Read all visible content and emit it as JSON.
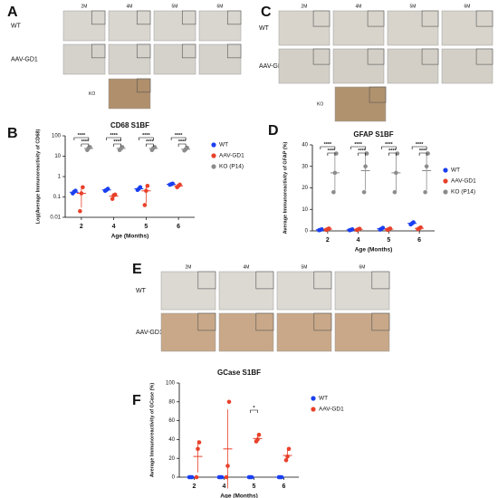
{
  "figure_panels": [
    {
      "panel": "A",
      "columns": [
        "2M",
        "4M",
        "5M",
        "6M"
      ],
      "rows": [
        "WT",
        "AAV-GD1"
      ],
      "extra": "KO"
    },
    {
      "panel": "C",
      "columns": [
        "2M",
        "4M",
        "5M",
        "6M"
      ],
      "rows": [
        "WT",
        "AAV-GD1."
      ],
      "extra": "KO"
    },
    {
      "panel": "E",
      "columns": [
        "2M",
        "4M",
        "5M",
        "6M"
      ],
      "rows": [
        "WT",
        "AAV-GD1"
      ]
    }
  ],
  "chart_data": [
    {
      "type": "dot",
      "panel": "B",
      "title": "CD68 S1BF",
      "x_label": "Age (Months)",
      "y_label": "Log(Average Immunoreactivity of CD68)",
      "log_scale": true,
      "ylim": [
        0.01,
        100
      ],
      "yticks": [
        0.01,
        0.1,
        1,
        10,
        100
      ],
      "categories": [
        "2",
        "4",
        "5",
        "6"
      ],
      "series": [
        {
          "name": "WT",
          "color": "#1a3ff0",
          "values": [
            0.17,
            0.22,
            0.25,
            0.42
          ],
          "errors": [
            0.03,
            0.03,
            0.04,
            0.03
          ],
          "points": [
            [
              0.15,
              0.18,
              0.2
            ],
            [
              0.2,
              0.22,
              0.25
            ],
            [
              0.22,
              0.25,
              0.3
            ],
            [
              0.4,
              0.42,
              0.45
            ]
          ]
        },
        {
          "name": "AAV-GD1",
          "color": "#e8412a",
          "values": [
            0.15,
            0.11,
            0.2,
            0.35
          ],
          "errors": [
            0.12,
            0.03,
            0.15,
            0.05
          ],
          "points": [
            [
              0.02,
              0.15,
              0.3
            ],
            [
              0.08,
              0.12,
              0.13
            ],
            [
              0.04,
              0.2,
              0.35
            ],
            [
              0.3,
              0.35,
              0.4
            ]
          ]
        },
        {
          "name": "KO (P14)",
          "color": "#8c8c8c",
          "values": [
            24,
            24,
            24,
            22
          ],
          "errors": [
            5,
            5,
            5,
            5
          ],
          "points": [
            [
              20,
              25,
              28
            ],
            [
              20,
              24,
              28
            ],
            [
              20,
              25,
              28
            ],
            [
              19,
              22,
              26
            ]
          ]
        }
      ],
      "annotations": [
        {
          "text": "****",
          "category": "2"
        },
        {
          "text": "****",
          "category": "2"
        },
        {
          "text": "****",
          "category": "4"
        },
        {
          "text": "****",
          "category": "4"
        },
        {
          "text": "****",
          "category": "5"
        },
        {
          "text": "****",
          "category": "5"
        },
        {
          "text": "****",
          "category": "6"
        },
        {
          "text": "****",
          "category": "6"
        }
      ]
    },
    {
      "type": "dot",
      "panel": "D",
      "title": "GFAP S1BF",
      "x_label": "Age (Months)",
      "y_label": "Average Immunoreactivity of GFAP (%)",
      "log_scale": false,
      "ylim": [
        0,
        40
      ],
      "yticks": [
        0,
        10,
        20,
        30,
        40
      ],
      "categories": [
        "2",
        "4",
        "5",
        "6"
      ],
      "series": [
        {
          "name": "WT",
          "color": "#1a3ff0",
          "values": [
            0.5,
            0.5,
            1,
            3.5
          ],
          "errors": [
            0.3,
            0.3,
            0.5,
            1
          ],
          "points": [
            [
              0.3,
              0.5,
              0.7
            ],
            [
              0.3,
              0.5,
              0.7
            ],
            [
              0.6,
              1,
              1.4
            ],
            [
              3,
              3.5,
              4
            ]
          ]
        },
        {
          "name": "AAV-GD1",
          "color": "#e8412a",
          "values": [
            0.8,
            0.7,
            0.8,
            1.2
          ],
          "errors": [
            0.4,
            0.4,
            0.4,
            0.4
          ],
          "points": [
            [
              0.5,
              0.8,
              1.1
            ],
            [
              0.4,
              0.7,
              1
            ],
            [
              0.5,
              0.8,
              1.1
            ],
            [
              0.8,
              1.2,
              1.6
            ]
          ]
        },
        {
          "name": "KO (P14)",
          "color": "#8c8c8c",
          "values": [
            27,
            28,
            27,
            28
          ],
          "errors": [
            9,
            9,
            9,
            9
          ],
          "points": [
            [
              18,
              27,
              36
            ],
            [
              18,
              30,
              36
            ],
            [
              18,
              27,
              36
            ],
            [
              18,
              30,
              36
            ]
          ]
        }
      ],
      "annotations": [
        {
          "text": "****",
          "category": "2"
        },
        {
          "text": "****",
          "category": "2"
        },
        {
          "text": "****",
          "category": "4"
        },
        {
          "text": "****",
          "category": "4"
        },
        {
          "text": "****",
          "category": "5"
        },
        {
          "text": "****",
          "category": "5"
        },
        {
          "text": "****",
          "category": "6"
        },
        {
          "text": "****",
          "category": "6"
        }
      ]
    },
    {
      "type": "dot",
      "panel": "F",
      "title": "GCase S1BF",
      "x_label": "Age (Months)",
      "y_label": "Average Immunoreactivity of GCase (%)",
      "log_scale": false,
      "ylim": [
        0,
        100
      ],
      "yticks": [
        0,
        20,
        40,
        60,
        80,
        100
      ],
      "categories": [
        "2",
        "4",
        "5",
        "6"
      ],
      "series": [
        {
          "name": "WT",
          "color": "#1a3ff0",
          "values": [
            0,
            0,
            0,
            0
          ],
          "errors": [
            0,
            0,
            0,
            0
          ],
          "points": [
            [
              0,
              0,
              0
            ],
            [
              0,
              0,
              0
            ],
            [
              0,
              0,
              0
            ],
            [
              0,
              0,
              0
            ]
          ]
        },
        {
          "name": "AAV-GD1",
          "color": "#e8412a",
          "values": [
            22,
            30,
            41,
            23
          ],
          "errors": [
            17,
            42,
            4,
            6
          ],
          "points": [
            [
              0,
              30,
              37
            ],
            [
              0,
              12,
              80
            ],
            [
              38,
              40,
              45
            ],
            [
              18,
              22,
              30
            ]
          ]
        }
      ],
      "annotations": [
        {
          "text": "*",
          "category": "5"
        }
      ]
    }
  ]
}
